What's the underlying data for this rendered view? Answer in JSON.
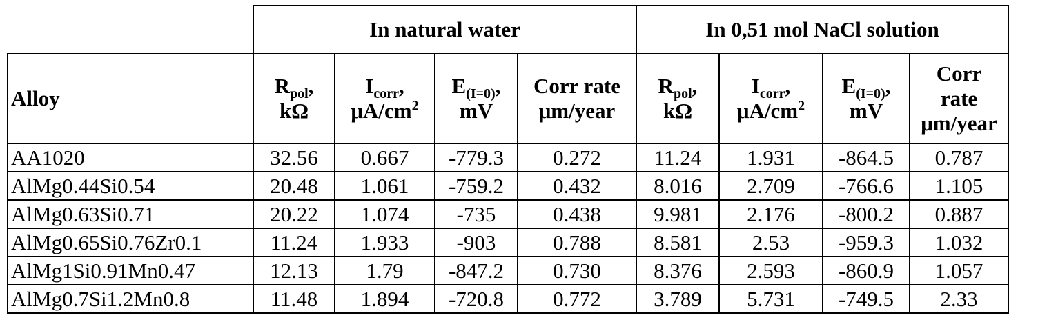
{
  "header": {
    "group_natural": "In natural water",
    "group_nacl": "In 0,51 mol NaCl solution",
    "alloy_label": "Alloy",
    "rpol": {
      "symbol": "R",
      "sub": "pol",
      "tail": ",",
      "unit": "kΩ"
    },
    "icorr": {
      "symbol": "I",
      "sub": "corr",
      "tail": ",",
      "unit": "μA/cm",
      "unit_sup": "2"
    },
    "e": {
      "symbol": "E",
      "sub": "(I=0)",
      "tail": ",",
      "unit": "mV"
    },
    "corr_natural": {
      "line1": "Corr rate",
      "line2": "μm/year"
    },
    "corr_nacl": {
      "line1": "Corr",
      "line2": "rate",
      "line3": "μm/year"
    }
  },
  "rows": [
    {
      "alloy": "AA1020",
      "n_rpol": "32.56",
      "n_icorr": "0.667",
      "n_e": "-779.3",
      "n_rate": "0.272",
      "s_rpol": "11.24",
      "s_icorr": "1.931",
      "s_e": "-864.5",
      "s_rate": "0.787"
    },
    {
      "alloy": "AlMg0.44Si0.54",
      "n_rpol": "20.48",
      "n_icorr": "1.061",
      "n_e": "-759.2",
      "n_rate": "0.432",
      "s_rpol": "8.016",
      "s_icorr": "2.709",
      "s_e": "-766.6",
      "s_rate": "1.105"
    },
    {
      "alloy": "AlMg0.63Si0.71",
      "n_rpol": "20.22",
      "n_icorr": "1.074",
      "n_e": "-735",
      "n_rate": "0.438",
      "s_rpol": "9.981",
      "s_icorr": "2.176",
      "s_e": "-800.2",
      "s_rate": "0.887"
    },
    {
      "alloy": "AlMg0.65Si0.76Zr0.1",
      "n_rpol": "11.24",
      "n_icorr": "1.933",
      "n_e": "-903",
      "n_rate": "0.788",
      "s_rpol": "8.581",
      "s_icorr": "2.53",
      "s_e": "-959.3",
      "s_rate": "1.032"
    },
    {
      "alloy": "AlMg1Si0.91Mn0.47",
      "n_rpol": "12.13",
      "n_icorr": "1.79",
      "n_e": "-847.2",
      "n_rate": "0.730",
      "s_rpol": "8.376",
      "s_icorr": "2.593",
      "s_e": "-860.9",
      "s_rate": "1.057"
    },
    {
      "alloy": "AlMg0.7Si1.2Mn0.8",
      "n_rpol": "11.48",
      "n_icorr": "1.894",
      "n_e": "-720.8",
      "n_rate": "0.772",
      "s_rpol": "3.789",
      "s_icorr": "5.731",
      "s_e": "-749.5",
      "s_rate": "2.33"
    }
  ]
}
